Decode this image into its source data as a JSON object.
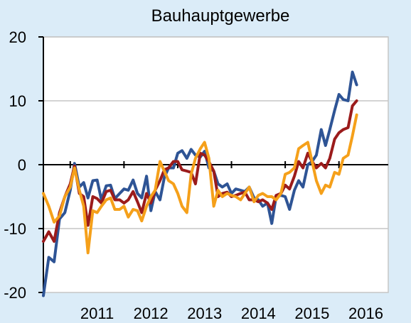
{
  "chart_data": {
    "type": "line",
    "title": "Bauhauptgewerbe",
    "xlabel": "",
    "ylabel": "",
    "ylim": [
      -20,
      20
    ],
    "yticks": [
      20,
      10,
      0,
      -10,
      -20
    ],
    "xlim": [
      2010.5,
      2016.917
    ],
    "xtick_labels": [
      {
        "label": "2011",
        "x": 2011.5
      },
      {
        "label": "2012",
        "x": 2012.5
      },
      {
        "label": "2013",
        "x": 2013.5
      },
      {
        "label": "2014",
        "x": 2014.5
      },
      {
        "label": "2015",
        "x": 2015.5
      },
      {
        "label": "2016",
        "x": 2016.5
      }
    ],
    "grid": "horizontal",
    "legend": "none",
    "series": [
      {
        "color": "#2e5495",
        "points": [
          [
            2010.5,
            -20.5
          ],
          [
            2010.6,
            -14.5
          ],
          [
            2010.7,
            -15.2
          ],
          [
            2010.8,
            -8.5
          ],
          [
            2010.9,
            -7.5
          ],
          [
            2011.0,
            -4.0
          ],
          [
            2011.08,
            0.2
          ],
          [
            2011.17,
            -3.5
          ],
          [
            2011.25,
            -2.8
          ],
          [
            2011.33,
            -5.2
          ],
          [
            2011.42,
            -2.5
          ],
          [
            2011.5,
            -2.4
          ],
          [
            2011.58,
            -5.5
          ],
          [
            2011.67,
            -3.3
          ],
          [
            2011.75,
            -3.2
          ],
          [
            2011.83,
            -5.3
          ],
          [
            2011.92,
            -4.5
          ],
          [
            2012.0,
            -3.8
          ],
          [
            2012.08,
            -4.0
          ],
          [
            2012.17,
            -2.4
          ],
          [
            2012.25,
            -4.5
          ],
          [
            2012.33,
            -5.2
          ],
          [
            2012.42,
            -1.8
          ],
          [
            2012.5,
            -7.2
          ],
          [
            2012.58,
            -4.2
          ],
          [
            2012.67,
            -5.5
          ],
          [
            2012.75,
            -2.0
          ],
          [
            2012.83,
            -0.5
          ],
          [
            2012.92,
            -0.5
          ],
          [
            2013.0,
            1.8
          ],
          [
            2013.08,
            2.2
          ],
          [
            2013.17,
            1.0
          ],
          [
            2013.25,
            2.4
          ],
          [
            2013.33,
            1.5
          ],
          [
            2013.42,
            1.2
          ],
          [
            2013.5,
            2.1
          ],
          [
            2013.58,
            -0.5
          ],
          [
            2013.67,
            -1.0
          ],
          [
            2013.75,
            -3.0
          ],
          [
            2013.83,
            -3.5
          ],
          [
            2013.92,
            -3.0
          ],
          [
            2014.0,
            -4.5
          ],
          [
            2014.08,
            -3.8
          ],
          [
            2014.17,
            -4.0
          ],
          [
            2014.25,
            -4.2
          ],
          [
            2014.33,
            -3.5
          ],
          [
            2014.42,
            -5.2
          ],
          [
            2014.5,
            -5.5
          ],
          [
            2014.58,
            -6.5
          ],
          [
            2014.67,
            -6.0
          ],
          [
            2014.75,
            -9.2
          ],
          [
            2014.83,
            -5.0
          ],
          [
            2014.92,
            -4.8
          ],
          [
            2015.0,
            -5.0
          ],
          [
            2015.08,
            -7.0
          ],
          [
            2015.17,
            -4.0
          ],
          [
            2015.25,
            -2.5
          ],
          [
            2015.33,
            -3.5
          ],
          [
            2015.42,
            0.0
          ],
          [
            2015.5,
            0.5
          ],
          [
            2015.58,
            1.5
          ],
          [
            2015.67,
            5.5
          ],
          [
            2015.75,
            3.0
          ],
          [
            2015.83,
            5.5
          ],
          [
            2015.92,
            8.5
          ],
          [
            2016.0,
            11.0
          ],
          [
            2016.08,
            10.2
          ],
          [
            2016.17,
            10.0
          ],
          [
            2016.25,
            14.5
          ],
          [
            2016.33,
            12.5
          ]
        ]
      },
      {
        "color": "#9b1b1b",
        "points": [
          [
            2010.5,
            -12.0
          ],
          [
            2010.6,
            -10.5
          ],
          [
            2010.7,
            -12.0
          ],
          [
            2010.8,
            -7.5
          ],
          [
            2010.9,
            -5.0
          ],
          [
            2011.0,
            -3.0
          ],
          [
            2011.08,
            -0.2
          ],
          [
            2011.17,
            -4.5
          ],
          [
            2011.25,
            -5.0
          ],
          [
            2011.33,
            -9.5
          ],
          [
            2011.42,
            -5.0
          ],
          [
            2011.5,
            -5.3
          ],
          [
            2011.58,
            -6.0
          ],
          [
            2011.67,
            -4.2
          ],
          [
            2011.75,
            -4.0
          ],
          [
            2011.83,
            -5.5
          ],
          [
            2011.92,
            -5.5
          ],
          [
            2012.0,
            -6.0
          ],
          [
            2012.08,
            -5.5
          ],
          [
            2012.17,
            -4.2
          ],
          [
            2012.25,
            -5.8
          ],
          [
            2012.33,
            -7.5
          ],
          [
            2012.42,
            -4.5
          ],
          [
            2012.5,
            -6.0
          ],
          [
            2012.58,
            -4.0
          ],
          [
            2012.67,
            -2.5
          ],
          [
            2012.75,
            -0.8
          ],
          [
            2012.83,
            -0.5
          ],
          [
            2012.92,
            0.5
          ],
          [
            2013.0,
            0.5
          ],
          [
            2013.08,
            -0.8
          ],
          [
            2013.17,
            -1.0
          ],
          [
            2013.25,
            -1.2
          ],
          [
            2013.33,
            -3.0
          ],
          [
            2013.42,
            1.8
          ],
          [
            2013.5,
            1.5
          ],
          [
            2013.58,
            0.5
          ],
          [
            2013.67,
            -1.0
          ],
          [
            2013.75,
            -5.0
          ],
          [
            2013.83,
            -4.5
          ],
          [
            2013.92,
            -4.3
          ],
          [
            2014.0,
            -5.0
          ],
          [
            2014.08,
            -4.8
          ],
          [
            2014.17,
            -4.5
          ],
          [
            2014.25,
            -4.3
          ],
          [
            2014.33,
            -5.5
          ],
          [
            2014.42,
            -5.5
          ],
          [
            2014.5,
            -5.8
          ],
          [
            2014.58,
            -5.5
          ],
          [
            2014.67,
            -6.0
          ],
          [
            2014.75,
            -7.0
          ],
          [
            2014.83,
            -4.8
          ],
          [
            2014.92,
            -4.5
          ],
          [
            2015.0,
            -3.2
          ],
          [
            2015.08,
            -3.8
          ],
          [
            2015.17,
            -1.8
          ],
          [
            2015.25,
            0.5
          ],
          [
            2015.33,
            -0.5
          ],
          [
            2015.42,
            1.8
          ],
          [
            2015.5,
            0.5
          ],
          [
            2015.58,
            -0.5
          ],
          [
            2015.67,
            0.2
          ],
          [
            2015.75,
            -0.5
          ],
          [
            2015.83,
            1.0
          ],
          [
            2015.92,
            4.0
          ],
          [
            2016.0,
            5.0
          ],
          [
            2016.08,
            5.5
          ],
          [
            2016.17,
            5.8
          ],
          [
            2016.25,
            9.2
          ],
          [
            2016.33,
            10.0
          ]
        ]
      },
      {
        "color": "#f5a01a",
        "points": [
          [
            2010.5,
            -4.5
          ],
          [
            2010.6,
            -6.5
          ],
          [
            2010.7,
            -9.0
          ],
          [
            2010.8,
            -8.0
          ],
          [
            2010.9,
            -5.0
          ],
          [
            2011.0,
            -3.5
          ],
          [
            2011.08,
            -0.5
          ],
          [
            2011.17,
            -4.0
          ],
          [
            2011.25,
            -6.5
          ],
          [
            2011.33,
            -13.8
          ],
          [
            2011.42,
            -7.2
          ],
          [
            2011.5,
            -7.5
          ],
          [
            2011.58,
            -6.5
          ],
          [
            2011.67,
            -5.5
          ],
          [
            2011.75,
            -5.2
          ],
          [
            2011.83,
            -7.0
          ],
          [
            2011.92,
            -7.0
          ],
          [
            2012.0,
            -6.5
          ],
          [
            2012.08,
            -8.2
          ],
          [
            2012.17,
            -7.0
          ],
          [
            2012.25,
            -7.2
          ],
          [
            2012.33,
            -8.8
          ],
          [
            2012.42,
            -6.5
          ],
          [
            2012.5,
            -5.0
          ],
          [
            2012.58,
            -4.0
          ],
          [
            2012.67,
            0.5
          ],
          [
            2012.75,
            -1.0
          ],
          [
            2012.83,
            -2.5
          ],
          [
            2012.92,
            -3.0
          ],
          [
            2013.0,
            -4.5
          ],
          [
            2013.08,
            -6.5
          ],
          [
            2013.17,
            -7.5
          ],
          [
            2013.25,
            -1.5
          ],
          [
            2013.33,
            1.0
          ],
          [
            2013.42,
            2.5
          ],
          [
            2013.5,
            3.5
          ],
          [
            2013.58,
            1.0
          ],
          [
            2013.67,
            -6.5
          ],
          [
            2013.75,
            -4.0
          ],
          [
            2013.83,
            -5.0
          ],
          [
            2013.92,
            -4.5
          ],
          [
            2014.0,
            -4.8
          ],
          [
            2014.08,
            -5.0
          ],
          [
            2014.17,
            -5.5
          ],
          [
            2014.25,
            -4.5
          ],
          [
            2014.33,
            -3.5
          ],
          [
            2014.42,
            -5.8
          ],
          [
            2014.5,
            -4.8
          ],
          [
            2014.58,
            -4.5
          ],
          [
            2014.67,
            -5.0
          ],
          [
            2014.75,
            -5.0
          ],
          [
            2014.83,
            -5.5
          ],
          [
            2014.92,
            -4.5
          ],
          [
            2015.0,
            -1.5
          ],
          [
            2015.08,
            -1.2
          ],
          [
            2015.17,
            -0.5
          ],
          [
            2015.25,
            2.5
          ],
          [
            2015.33,
            3.0
          ],
          [
            2015.42,
            3.5
          ],
          [
            2015.5,
            0.5
          ],
          [
            2015.58,
            -2.5
          ],
          [
            2015.67,
            -4.5
          ],
          [
            2015.75,
            -3.2
          ],
          [
            2015.83,
            -3.5
          ],
          [
            2015.92,
            -1.2
          ],
          [
            2016.0,
            -1.5
          ],
          [
            2016.08,
            1.0
          ],
          [
            2016.17,
            1.5
          ],
          [
            2016.25,
            4.5
          ],
          [
            2016.33,
            7.8
          ]
        ]
      }
    ]
  }
}
